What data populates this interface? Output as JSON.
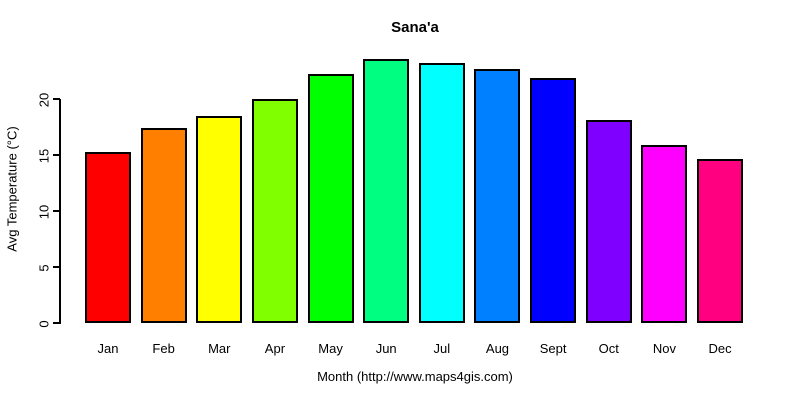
{
  "chart": {
    "title": "Sana'a",
    "ylabel": "Avg Temperature (°C)",
    "xlabel": "Month (http://www.maps4gis.com)"
  },
  "chart_data": {
    "type": "bar",
    "title": "Sana'a",
    "xlabel": "Month (http://www.maps4gis.com)",
    "ylabel": "Avg Temperature (°C)",
    "categories": [
      "Jan",
      "Feb",
      "Mar",
      "Apr",
      "May",
      "Jun",
      "Jul",
      "Aug",
      "Sept",
      "Oct",
      "Nov",
      "Dec"
    ],
    "values": [
      15.3,
      17.4,
      18.5,
      20,
      22.2,
      23.6,
      23.2,
      22.7,
      21.9,
      18.1,
      15.9,
      14.6
    ],
    "bar_colors": [
      "#FF0000",
      "#FF8000",
      "#FFFF00",
      "#80FF00",
      "#00FF00",
      "#00FF80",
      "#00FFFF",
      "#0080FF",
      "#0000FF",
      "#8000FF",
      "#FF00FF",
      "#FF0080"
    ],
    "bar_border_color": "#000000",
    "yticks": [
      0,
      5,
      10,
      15,
      20
    ],
    "ylim": [
      0,
      25
    ],
    "grid": false,
    "legend": "none",
    "background": "#FFFFFF",
    "axis_color": "#000000"
  }
}
